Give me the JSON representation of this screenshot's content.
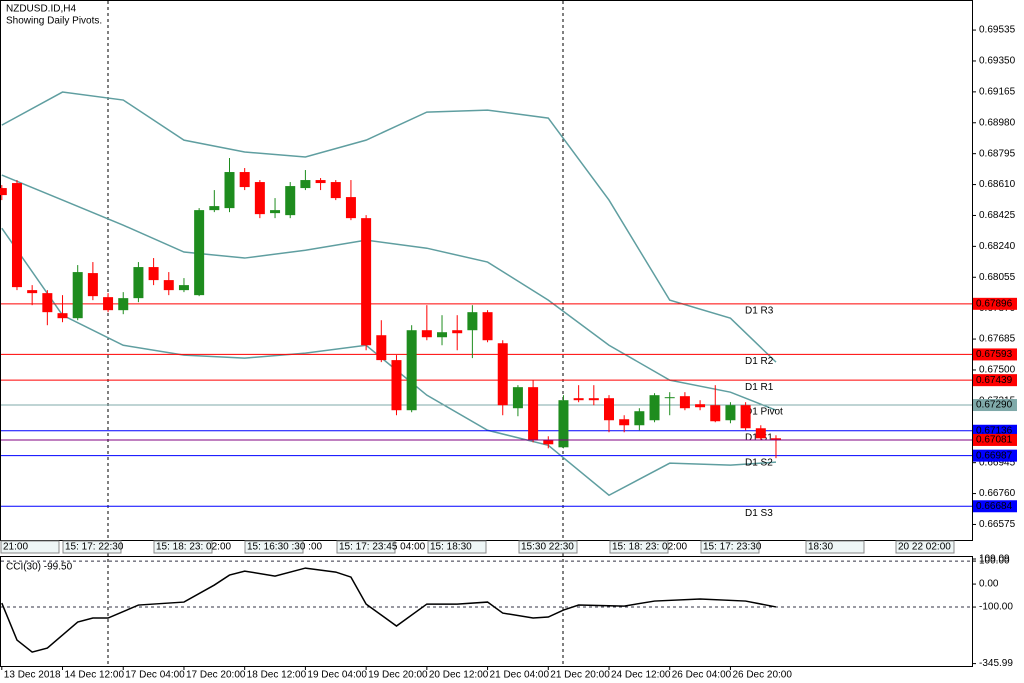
{
  "chart_data": {
    "type": "candlestick",
    "title": "NZDUSD.ID,H4",
    "subtitle": "Showing Daily Pivots.",
    "categories": [
      "13 Dec 2018",
      null,
      null,
      null,
      "14 Dec 12:00",
      null,
      null,
      null,
      "17 Dec 04:00",
      null,
      null,
      null,
      "17 Dec 20:00",
      null,
      null,
      null,
      "18 Dec 12:00",
      null,
      null,
      null,
      "19 Dec 04:00",
      null,
      null,
      null,
      "19 Dec 20:00",
      null,
      null,
      null,
      "20 Dec 12:00",
      null,
      null,
      null,
      "21 Dec 04:00",
      null,
      null,
      null,
      "21 Dec 20:00",
      null,
      null,
      null,
      "24 Dec 12:00",
      null,
      null,
      null,
      "26 Dec 04:00",
      null,
      null,
      null,
      "26 Dec 20:00",
      null,
      null,
      null
    ],
    "open": [
      0.68589,
      0.68619,
      0.67978,
      0.6796,
      0.6784,
      0.6781,
      0.6808,
      0.67936,
      0.67858,
      0.6793,
      0.68116,
      0.68038,
      0.67978,
      0.67948,
      0.68457,
      0.68469,
      0.68685,
      0.68625,
      0.68439,
      0.68427,
      0.68589,
      0.68637,
      0.68625,
      0.68535,
      0.68409,
      0.67708,
      0.67559,
      0.67259,
      0.67738,
      0.67696,
      0.67738,
      0.67738,
      0.67846,
      0.6766,
      0.67271,
      0.67397,
      0.67079,
      0.67037,
      0.67331,
      0.67331,
      0.67331,
      0.67205,
      0.67169,
      0.67199,
      0.67331,
      0.67343,
      0.67295,
      0.67289,
      0.67199,
      0.67289,
      0.67151,
      0.67091
    ],
    "high": [
      0.68607,
      0.68637,
      0.68008,
      0.67978,
      0.67948,
      0.68128,
      0.68146,
      0.6796,
      0.67966,
      0.68146,
      0.6817,
      0.68086,
      0.6805,
      0.68469,
      0.68577,
      0.68769,
      0.68709,
      0.68637,
      0.68529,
      0.68625,
      0.68697,
      0.68649,
      0.68637,
      0.68637,
      0.68427,
      0.67798,
      0.67589,
      0.67768,
      0.67888,
      0.67828,
      0.67828,
      0.67888,
      0.67858,
      0.67678,
      0.67409,
      0.67439,
      0.67103,
      0.67349,
      0.67409,
      0.67409,
      0.67349,
      0.67229,
      0.67271,
      0.67361,
      0.67367,
      0.67367,
      0.67319,
      0.67409,
      0.67307,
      0.67307,
      0.67169,
      0.67109
    ],
    "low": [
      0.68517,
      0.67978,
      0.67888,
      0.67768,
      0.67786,
      0.67798,
      0.67918,
      0.67846,
      0.67834,
      0.67906,
      0.68008,
      0.67948,
      0.67966,
      0.67942,
      0.68445,
      0.68445,
      0.68577,
      0.68409,
      0.68409,
      0.68409,
      0.68577,
      0.68577,
      0.68517,
      0.68397,
      0.67618,
      0.67547,
      0.67229,
      0.67247,
      0.67678,
      0.67648,
      0.67618,
      0.67571,
      0.67666,
      0.67229,
      0.67223,
      0.67067,
      0.67031,
      0.67031,
      0.67307,
      0.67289,
      0.67127,
      0.67127,
      0.67139,
      0.67187,
      0.67229,
      0.67259,
      0.67259,
      0.67187,
      0.67181,
      0.67139,
      0.67079,
      0.66972
    ],
    "close": [
      0.68547,
      0.67996,
      0.6796,
      0.67846,
      0.6781,
      0.68086,
      0.67942,
      0.67858,
      0.6793,
      0.68116,
      0.68038,
      0.67978,
      0.68008,
      0.68457,
      0.68481,
      0.68685,
      0.68595,
      0.68433,
      0.68457,
      0.68601,
      0.68637,
      0.68619,
      0.68529,
      0.68409,
      0.67648,
      0.67559,
      0.67259,
      0.67738,
      0.67696,
      0.67726,
      0.6772,
      0.67846,
      0.67678,
      0.67289,
      0.67397,
      0.67079,
      0.67055,
      0.67319,
      0.67319,
      0.67319,
      0.67199,
      0.67169,
      0.67253,
      0.67349,
      0.67337,
      0.67271,
      0.67277,
      0.67193,
      0.67289,
      0.67151,
      0.67091,
      0.67081
    ],
    "up_color": "#1e8c1e",
    "down_color": "#ff0000",
    "ylim": [
      0.66482,
      0.69715
    ],
    "yticks": [
      0.69535,
      {
        "value": 0.6935,
        "label": "0.69350"
      },
      0.69165,
      {
        "value": 0.6898,
        "label": "0.68980"
      },
      0.68795,
      {
        "value": 0.6861,
        "label": "0.68610"
      },
      0.68425,
      {
        "value": 0.6824,
        "label": "0.68240"
      },
      0.68055,
      {
        "value": 0.6787,
        "label": "0.67870"
      },
      0.67685,
      {
        "value": 0.675,
        "label": "0.67500"
      },
      0.67315,
      {
        "value": 0.6713,
        "label": "0.67130"
      },
      0.66945,
      {
        "value": 0.6676,
        "label": "0.66760"
      },
      0.66575
    ],
    "bands": [
      {
        "color": "#5f9ea0",
        "x": [
          0,
          4,
          8,
          12,
          16,
          20,
          24,
          28,
          32,
          36,
          40,
          44,
          48,
          51
        ],
        "values": [
          0.68966,
          0.69164,
          0.69116,
          0.68876,
          0.68805,
          0.68775,
          0.68876,
          0.69044,
          0.69056,
          0.69008,
          0.68517,
          0.67918,
          0.6781,
          0.67547
        ]
      },
      {
        "color": "#5f9ea0",
        "x": [
          0,
          4,
          8,
          12,
          16,
          20,
          24,
          28,
          32,
          36,
          40,
          44,
          48,
          51
        ],
        "values": [
          0.68667,
          0.68517,
          0.68367,
          0.68206,
          0.6817,
          0.68217,
          0.68277,
          0.68229,
          0.68146,
          0.67918,
          0.67648,
          0.67439,
          0.67367,
          0.67259
        ]
      },
      {
        "color": "#5f9ea0",
        "x": [
          0,
          4,
          8,
          12,
          16,
          20,
          24,
          28,
          32,
          36,
          40,
          44,
          48,
          51
        ],
        "values": [
          0.68349,
          0.67828,
          0.67648,
          0.67589,
          0.67571,
          0.67601,
          0.67648,
          0.67349,
          0.67139,
          0.67049,
          0.6675,
          0.66942,
          0.6693,
          0.66948
        ]
      }
    ],
    "pivots": [
      {
        "name": "D1 R3",
        "value": 0.67896,
        "color": "#ff0000"
      },
      {
        "name": "D1 R2",
        "value": 0.67593,
        "color": "#ff0000"
      },
      {
        "name": "D1 R1",
        "value": 0.67439,
        "color": "#ff0000"
      },
      {
        "name": "D1 Pivot",
        "value": 0.6729,
        "label": "0.67290",
        "color": "#7fa9a9"
      },
      {
        "name": "D1 S1",
        "value": 0.67136,
        "color": "#0000ff"
      },
      {
        "name": "D1 S2",
        "value": 0.66987,
        "color": "#0000ff"
      },
      {
        "name": "D1 S3",
        "value": 0.66684,
        "color": "#0000ff"
      }
    ],
    "current_price": {
      "value": 0.67081,
      "color": "#800080"
    },
    "session_labels": [
      "21:00",
      "15: 17: 22:30",
      "15: 18: 23: 02:00",
      "15: 16:30 :30 :00",
      "15: 17: 23:45 04:00",
      "15: 18:30",
      "15:30 22:30",
      "15: 18: 23: 02:00",
      "15: 17: 23:30",
      "18:30",
      "20 22 02:00"
    ],
    "indicator": {
      "title": "CCI(30) -99.50",
      "color": "#000000",
      "ylim": [
        -345.99,
        109.09
      ],
      "yticks": [
        109.09,
        {
          "value": 100,
          "label": "100.00"
        },
        {
          "value": 0,
          "label": "0.00"
        },
        {
          "value": -100,
          "label": "-100.00"
        },
        -345.99
      ],
      "x": [
        0,
        1,
        2,
        3,
        4,
        5,
        6,
        7,
        9,
        12,
        14,
        15,
        16,
        18,
        20,
        22,
        23,
        24,
        26,
        28,
        30,
        32,
        33,
        35,
        36,
        37,
        38,
        41,
        43,
        46,
        49,
        51
      ],
      "values": [
        -82.6,
        -243.5,
        -295.7,
        -278.3,
        -221.7,
        -165.2,
        -147.8,
        -147.8,
        -91.3,
        -78.3,
        -4.3,
        39.1,
        56.5,
        34.8,
        69.6,
        52.2,
        30.4,
        -87.0,
        -182.6,
        -87.0,
        -87.0,
        -78.3,
        -126.1,
        -147.8,
        -143.5,
        -113.0,
        -91.3,
        -95.7,
        -73.9,
        -65.2,
        -73.9,
        -99.5
      ]
    }
  }
}
